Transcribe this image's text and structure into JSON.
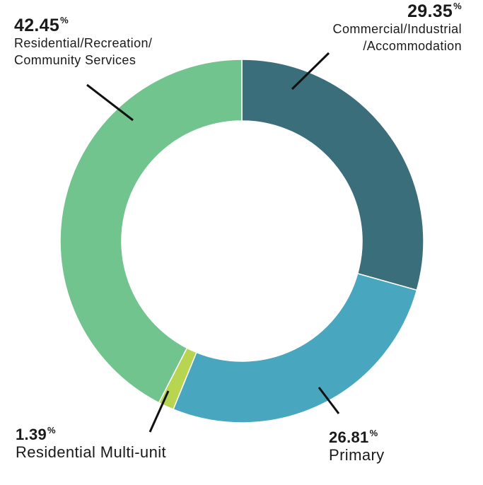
{
  "chart_data": {
    "type": "pie",
    "donut": true,
    "slices": [
      {
        "label": "Commercial/Industrial /Accommodation",
        "value": 29.35,
        "color": "#3b6e7b"
      },
      {
        "label": "Primary",
        "value": 26.81,
        "color": "#48a6bf"
      },
      {
        "label": "Residential Multi-unit",
        "value": 1.39,
        "color": "#b8d552"
      },
      {
        "label": "Residential/Recreation/ Community Services",
        "value": 42.45,
        "color": "#72c48e"
      }
    ],
    "unit_symbol": "%"
  },
  "labels": {
    "res_rec": {
      "value": "42.45",
      "unit": "%",
      "line1": "Residential/Recreation/",
      "line2": "Community Services"
    },
    "comm": {
      "value": "29.35",
      "unit": "%",
      "line1": "Commercial/Industrial",
      "line2": "/Accommodation"
    },
    "multi": {
      "value": "1.39",
      "unit": "%",
      "line1": "Residential Multi-unit"
    },
    "primary": {
      "value": "26.81",
      "unit": "%",
      "line1": "Primary"
    }
  }
}
